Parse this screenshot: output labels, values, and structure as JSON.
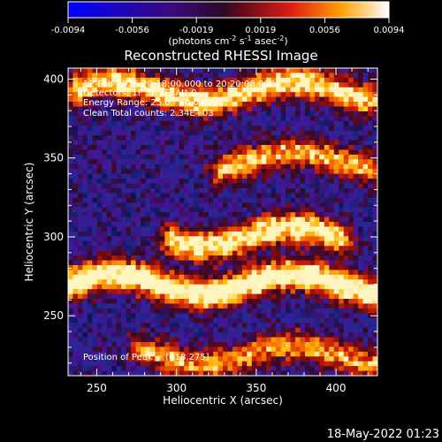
{
  "colorbar": {
    "ticks": [
      "-0.0094",
      "-0.0056",
      "-0.0019",
      "0.0019",
      "0.0056",
      "0.0094"
    ],
    "units_label": "(photons cm",
    "units_exp1": "-2",
    "units_mid": " s",
    "units_exp2": "-1",
    "units_mid2": " asec",
    "units_exp3": "-2",
    "units_close": ")",
    "range": [
      -0.0094,
      0.0094
    ]
  },
  "chart_data": {
    "type": "heatmap",
    "title": "Reconstructed RHESSI Image",
    "xlabel": "Heliocentric X (arcsec)",
    "ylabel": "Heliocentric Y (arcsec)",
    "xlim": [
      232,
      426
    ],
    "ylim": [
      212,
      407
    ],
    "x_ticks": [
      250,
      300,
      350,
      400
    ],
    "y_ticks": [
      250,
      300,
      350,
      400
    ],
    "annotations": [
      "12-Feb-2015 20:18:00.000 to 20:20:08.000",
      "Detectors: 1F 3F 7F, Att 0",
      "Energy Range: 25.0 - 50.0 keV",
      "Clean    Total counts: 2.34E+03"
    ],
    "peak_label": "Position of Peak = [418,275]",
    "peak": [
      418,
      275
    ],
    "bands": [
      {
        "center_y": 392,
        "x_range": [
          240,
          420
        ],
        "intensity": 0.8
      },
      {
        "center_y": 348,
        "x_range": [
          330,
          420
        ],
        "intensity": 0.65
      },
      {
        "center_y": 300,
        "x_range": [
          300,
          400
        ],
        "intensity": 0.85
      },
      {
        "center_y": 270,
        "x_range": [
          232,
          426
        ],
        "intensity": 0.95
      },
      {
        "center_y": 225,
        "x_range": [
          280,
          426
        ],
        "intensity": 0.6
      }
    ]
  },
  "footer": {
    "date": "18-May-2022 01:23"
  }
}
